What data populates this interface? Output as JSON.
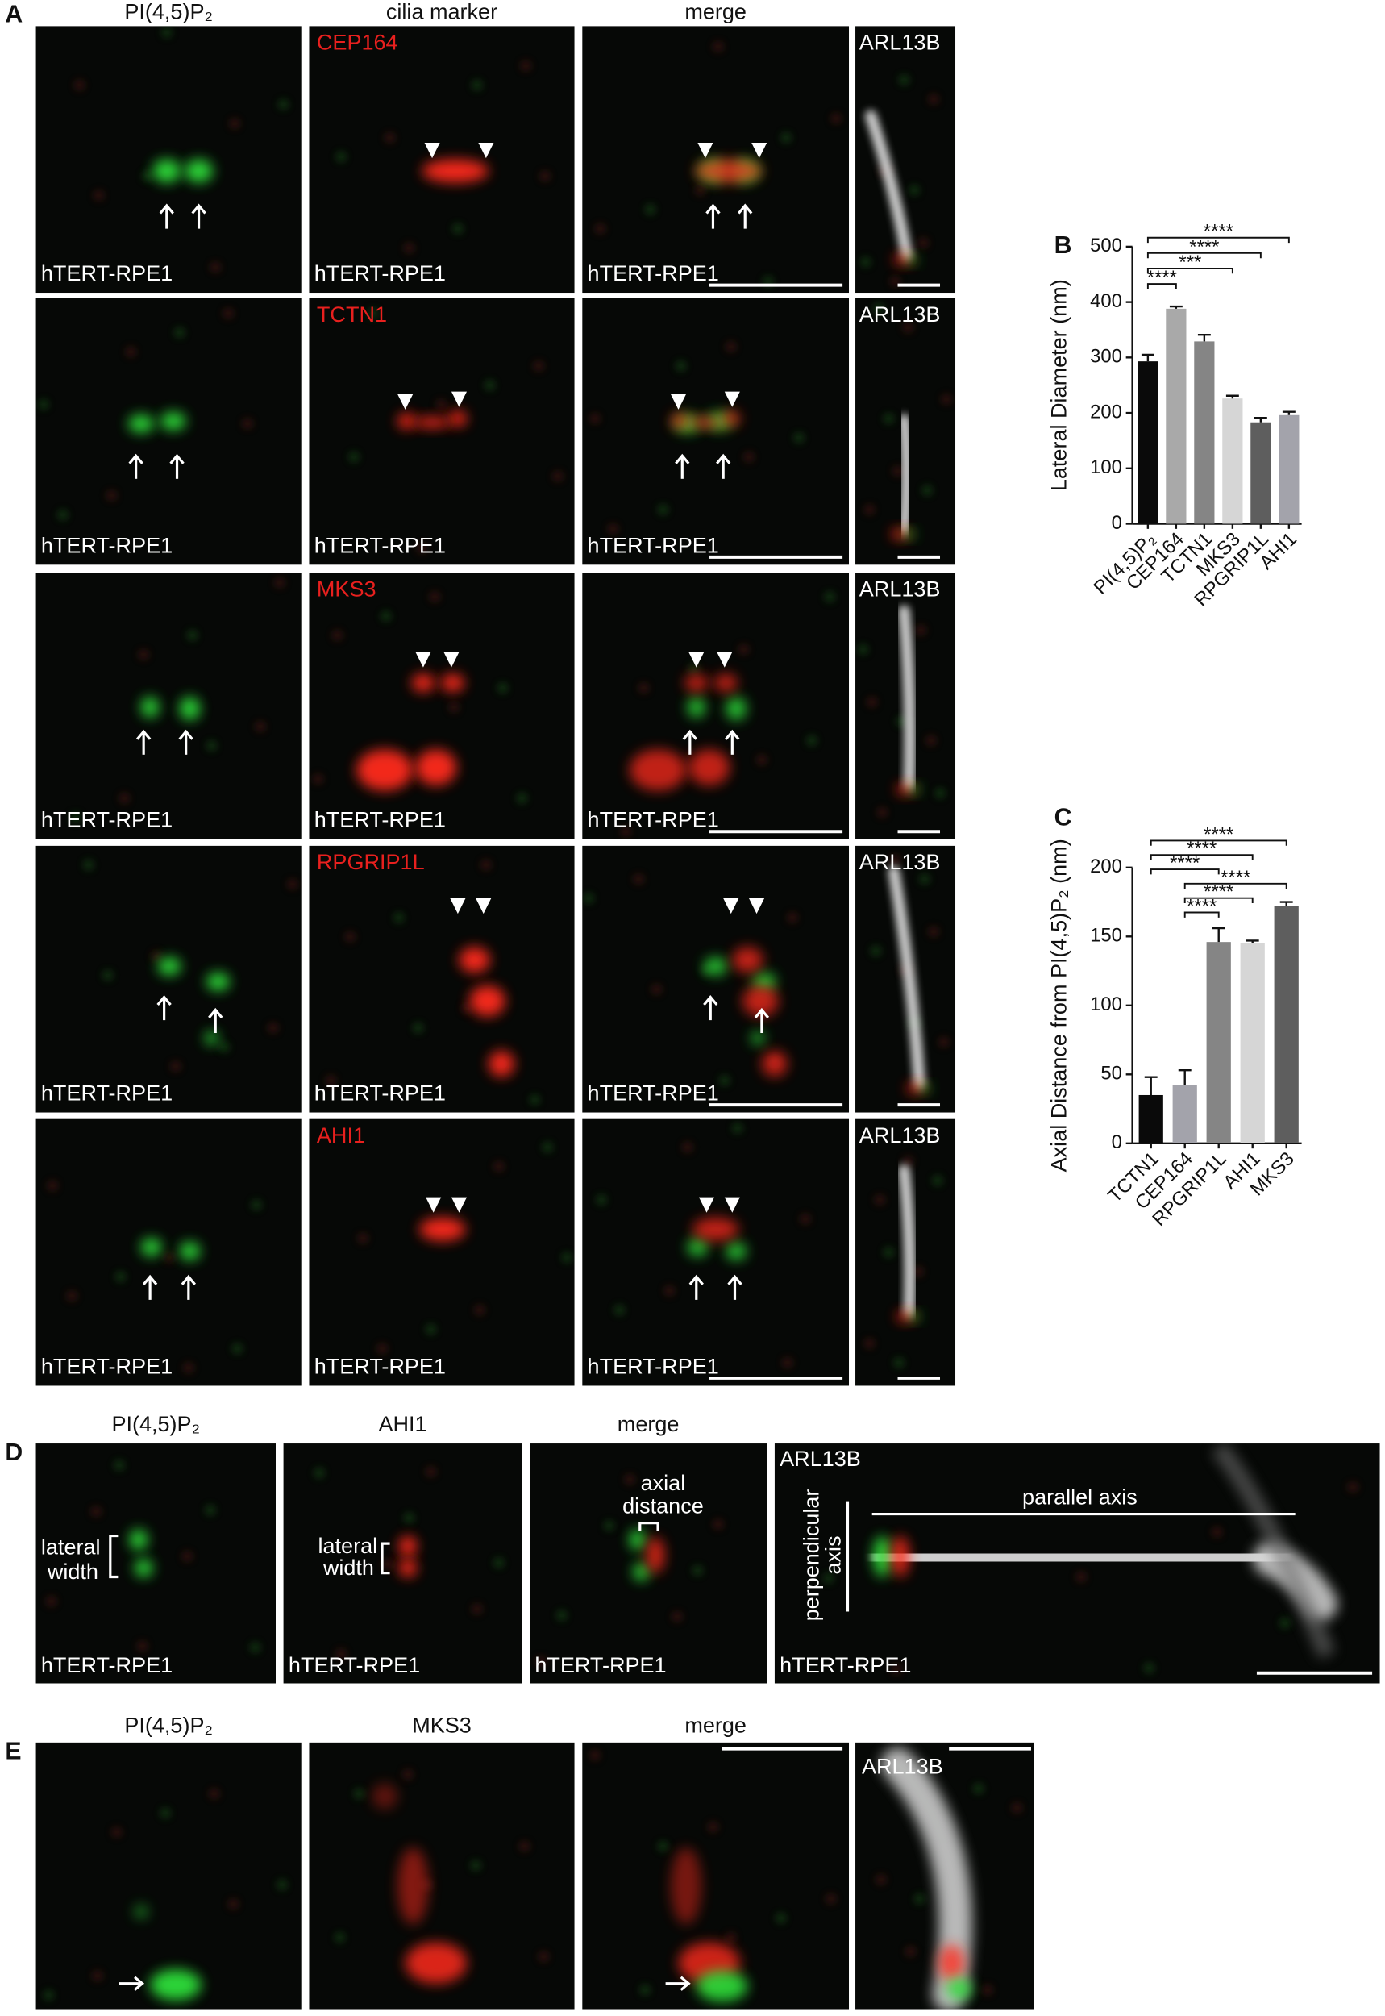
{
  "panel_a": {
    "letter": "A",
    "column_headers": [
      "PI(4,5)P₂",
      "cilia marker",
      "merge"
    ],
    "rows": [
      {
        "marker": "CEP164",
        "cilia_label": "ARL13B",
        "cell_line": [
          "hTERT-RPE1",
          "hTERT-RPE1",
          "hTERT-RPE1"
        ]
      },
      {
        "marker": "TCTN1",
        "cilia_label": "ARL13B",
        "cell_line": [
          "hTERT-RPE1",
          "hTERT-RPE1",
          "hTERT-RPE1"
        ]
      },
      {
        "marker": "MKS3",
        "cilia_label": "ARL13B",
        "cell_line": [
          "hTERT-RPE1",
          "hTERT-RPE1",
          "hTERT-RPE1"
        ]
      },
      {
        "marker": "RPGRIP1L",
        "cilia_label": "ARL13B",
        "cell_line": [
          "hTERT-RPE1",
          "hTERT-RPE1",
          "hTERT-RPE1"
        ]
      },
      {
        "marker": "AHI1",
        "cilia_label": "ARL13B",
        "cell_line": [
          "hTERT-RPE1",
          "hTERT-RPE1",
          "hTERT-RPE1"
        ]
      }
    ]
  },
  "chart_data": [
    {
      "type": "bar",
      "panel_letter": "B",
      "ylabel": "Lateral Diameter (nm)",
      "categories": [
        "PI(4,5)P₂",
        "CEP164",
        "TCTN1",
        "MKS3",
        "RPGRIP1L",
        "AHI1"
      ],
      "values": [
        293,
        388,
        329,
        226,
        183,
        196
      ],
      "errors": [
        12,
        4,
        12,
        5,
        8,
        6
      ],
      "colors": [
        "#0a0a0a",
        "#a9a9a9",
        "#858585",
        "#d6d6d6",
        "#5e5e5e",
        "#a3a3ab"
      ],
      "ylim": [
        0,
        500
      ],
      "yticks": [
        0,
        100,
        200,
        300,
        400,
        500
      ],
      "significance": [
        {
          "label": "****",
          "pair": [
            0,
            5
          ]
        },
        {
          "label": "****",
          "pair": [
            0,
            4
          ]
        },
        {
          "label": "***",
          "pair": [
            0,
            3
          ]
        },
        {
          "label": "****",
          "pair": [
            0,
            1
          ]
        }
      ]
    },
    {
      "type": "bar",
      "panel_letter": "C",
      "ylabel": "Axial Distance from PI(4,5)P₂ (nm)",
      "categories": [
        "TCTN1",
        "CEP164",
        "RPGRIP1L",
        "AHI1",
        "MKS3"
      ],
      "values": [
        35,
        42,
        146,
        145,
        172
      ],
      "errors": [
        13,
        11,
        10,
        2,
        3
      ],
      "colors": [
        "#0a0a0a",
        "#a3a3ab",
        "#858585",
        "#d6d6d6",
        "#5e5e5e"
      ],
      "ylim": [
        0,
        200
      ],
      "yticks": [
        0,
        50,
        100,
        150,
        200
      ],
      "significance": [
        {
          "label": "****",
          "pair": [
            0,
            4
          ]
        },
        {
          "label": "****",
          "pair": [
            0,
            3
          ]
        },
        {
          "label": "****",
          "pair": [
            0,
            2
          ]
        },
        {
          "label": "****",
          "pair": [
            1,
            4
          ]
        },
        {
          "label": "****",
          "pair": [
            1,
            3
          ]
        },
        {
          "label": "****",
          "pair": [
            1,
            2
          ]
        }
      ]
    }
  ],
  "panel_d": {
    "letter": "D",
    "column_headers": [
      "PI(4,5)P₂",
      "AHI1",
      "merge"
    ],
    "lateral_width": [
      [
        "lateral",
        "width"
      ],
      [
        "lateral",
        "width"
      ]
    ],
    "axial_distance": [
      "axial",
      "distance"
    ],
    "cilia_label": "ARL13B",
    "parallel_axis": "parallel axis",
    "perpendicular_axis": [
      "perpendicular",
      "axis"
    ],
    "cell_line": [
      "hTERT-RPE1",
      "hTERT-RPE1",
      "hTERT-RPE1",
      "hTERT-RPE1"
    ]
  },
  "panel_e": {
    "letter": "E",
    "column_headers": [
      "PI(4,5)P₂",
      "MKS3",
      "merge"
    ],
    "cilia_label": "ARL13B"
  }
}
